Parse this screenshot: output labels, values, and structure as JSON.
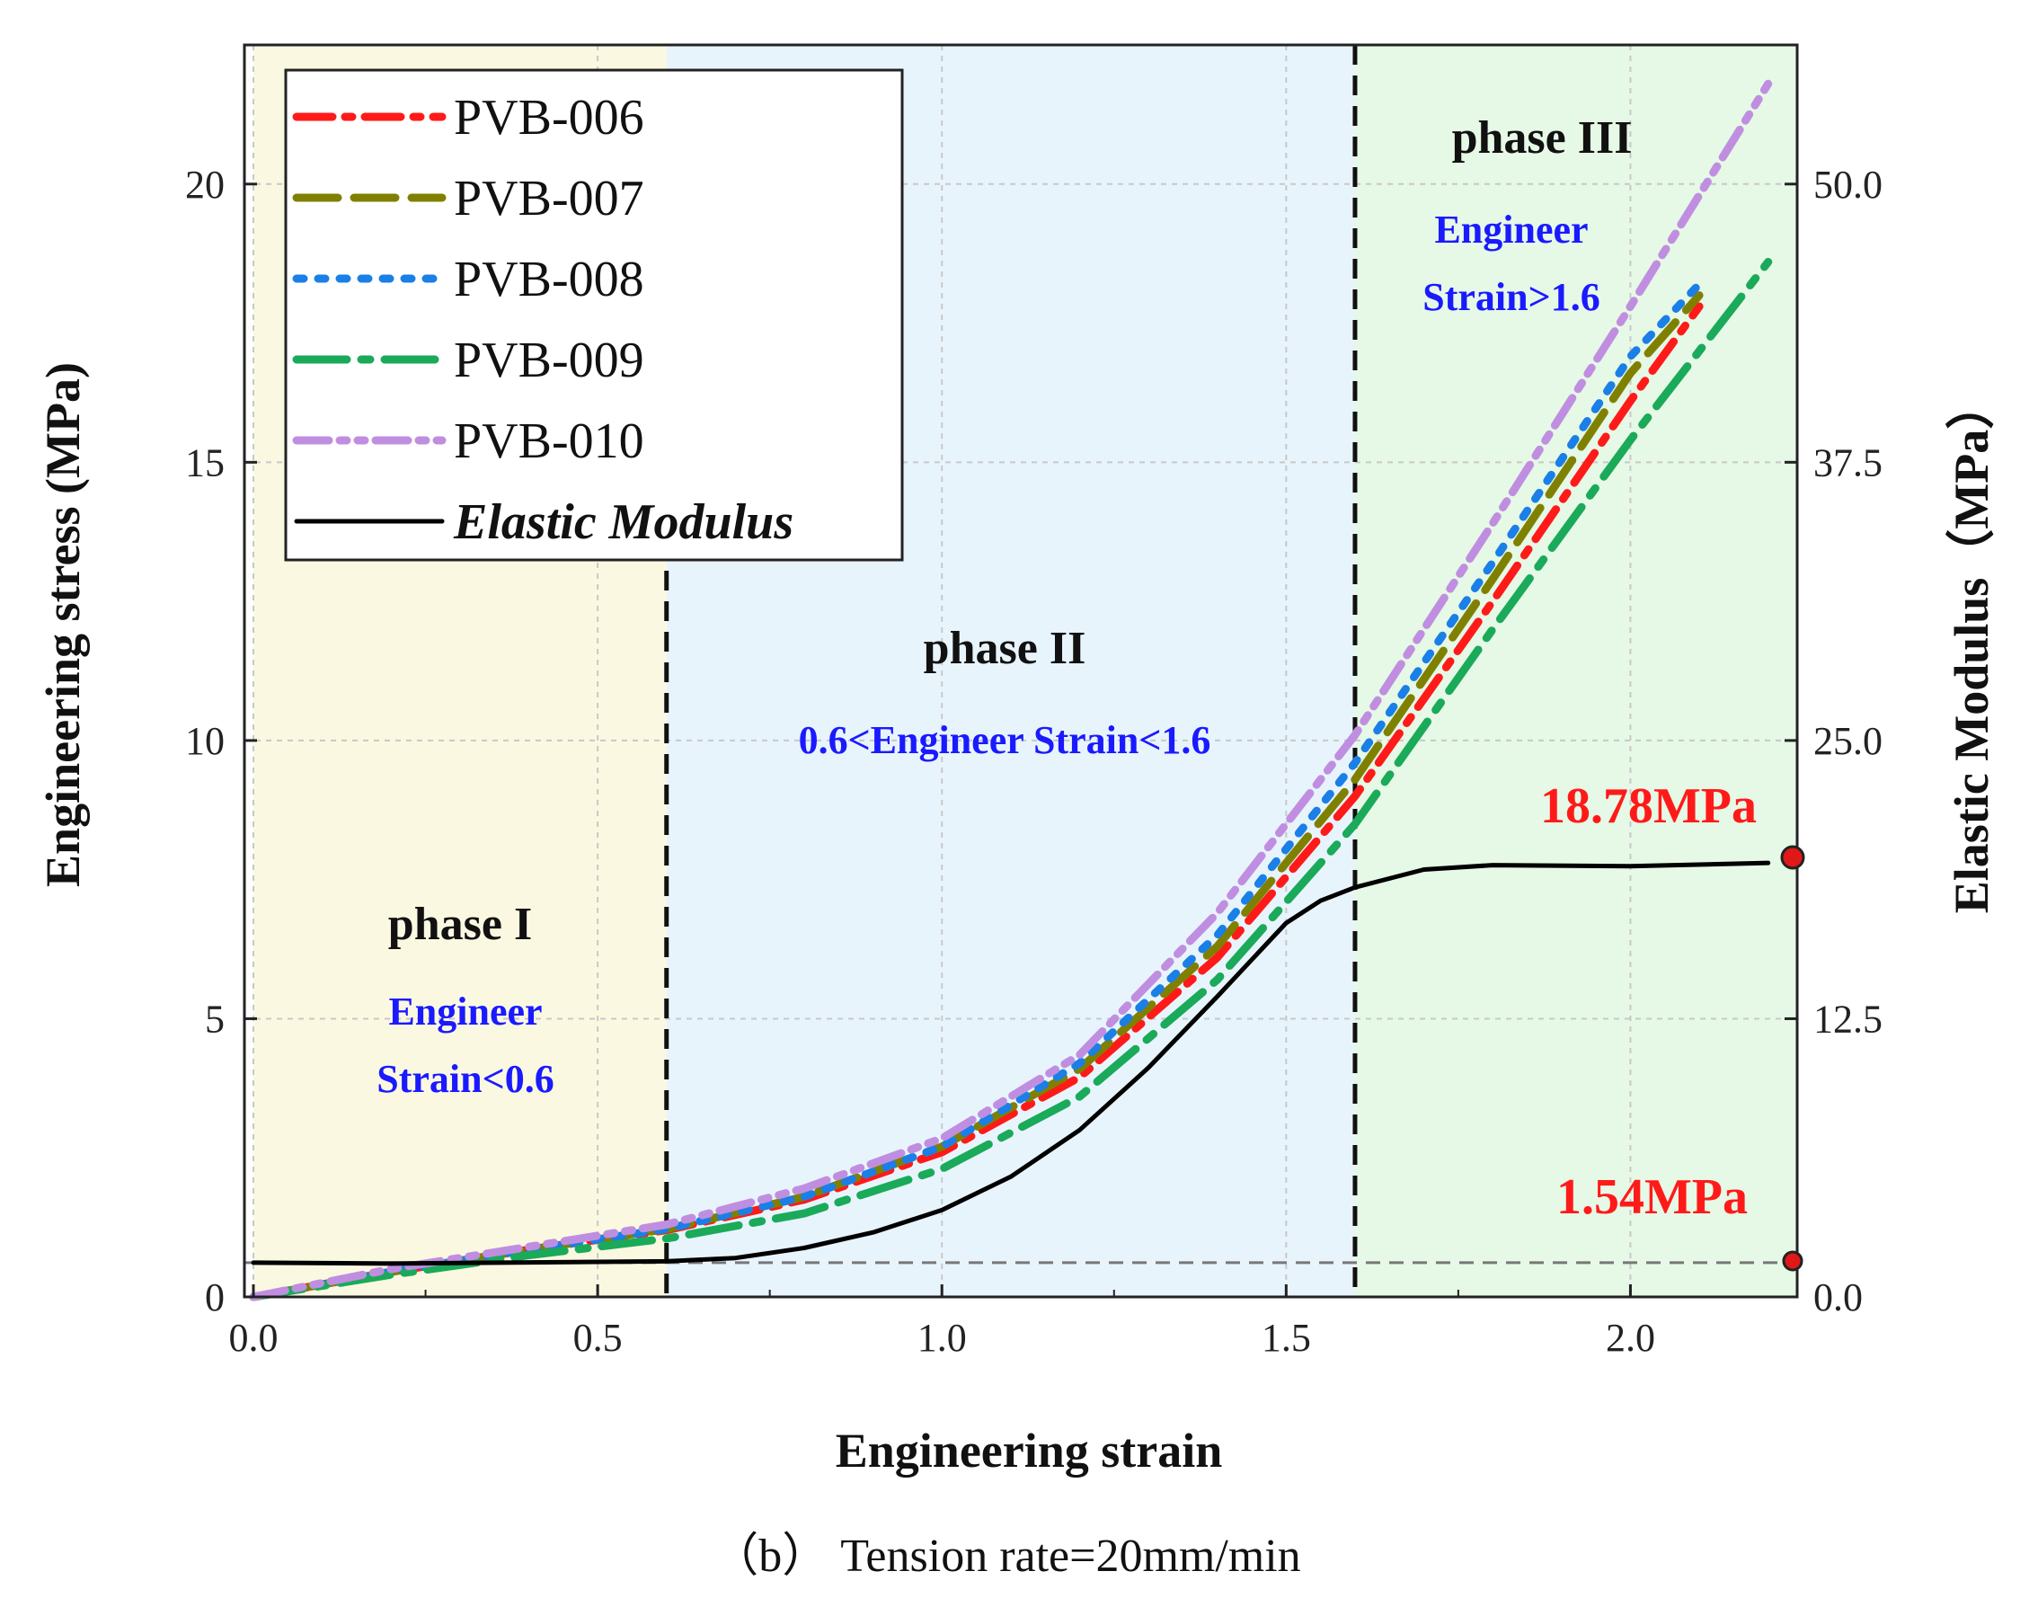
{
  "chart_data": {
    "type": "line",
    "title": "",
    "caption": "（b） Tension rate=20mm/min",
    "xlabel": "Engineering strain",
    "ylabel": "Engineering stress (MPa)",
    "y2label": "Elastic Modulus（MPa）",
    "xlim": [
      0.0,
      2.25
    ],
    "ylim": [
      0,
      22.5
    ],
    "y2lim": [
      0.0,
      56.25
    ],
    "xticks": [
      "0.0",
      "0.5",
      "1.0",
      "1.5",
      "2.0"
    ],
    "yticks": [
      "0",
      "5",
      "10",
      "15",
      "20"
    ],
    "y2ticks": [
      "0.0",
      "12.5",
      "25.0",
      "37.5",
      "50.0"
    ],
    "grid": true,
    "legend_position": "top-left",
    "phases": [
      {
        "name": "phase I",
        "note_line1": "Engineer",
        "note_line2": "Strain<0.6",
        "x_start": 0.0,
        "x_end": 0.6,
        "color": "#fbf8e2"
      },
      {
        "name": "phase II",
        "note_line1": "0.6<Engineer  Strain<1.6",
        "note_line2": "",
        "x_start": 0.6,
        "x_end": 1.6,
        "color": "#e8f4fc"
      },
      {
        "name": "phase III",
        "note_line1": "Engineer",
        "note_line2": "Strain>1.6",
        "x_start": 1.6,
        "x_end": 2.25,
        "color": "#e6f8e6"
      }
    ],
    "phase_boundaries": [
      0.6,
      1.6
    ],
    "annotations": [
      {
        "text": "18.78MPa",
        "x": 2.25,
        "y2": 19.4
      },
      {
        "text": "1.54MPa",
        "x": 2.25,
        "y2": 1.3
      }
    ],
    "series": [
      {
        "name": "PVB-006",
        "color": "#ff1a1a",
        "dash": "dashdot",
        "axis": "left",
        "x": [
          0,
          0.2,
          0.4,
          0.6,
          0.8,
          1.0,
          1.2,
          1.4,
          1.6,
          1.8,
          2.0,
          2.1
        ],
        "y": [
          0,
          0.45,
          0.85,
          1.2,
          1.75,
          2.6,
          3.95,
          6.1,
          9.0,
          12.5,
          16.1,
          17.8
        ]
      },
      {
        "name": "PVB-007",
        "color": "#808000",
        "dash": "dash",
        "axis": "left",
        "x": [
          0,
          0.2,
          0.4,
          0.6,
          0.8,
          1.0,
          1.2,
          1.4,
          1.6,
          1.8,
          2.0,
          2.1
        ],
        "y": [
          0,
          0.45,
          0.85,
          1.22,
          1.8,
          2.7,
          4.1,
          6.3,
          9.3,
          12.9,
          16.6,
          18.0
        ]
      },
      {
        "name": "PVB-008",
        "color": "#1a7fe6",
        "dash": "dot",
        "axis": "left",
        "x": [
          0,
          0.2,
          0.4,
          0.6,
          0.8,
          1.0,
          1.2,
          1.4,
          1.6,
          1.8,
          2.0,
          2.1
        ],
        "y": [
          0,
          0.45,
          0.85,
          1.22,
          1.8,
          2.7,
          4.2,
          6.5,
          9.6,
          13.2,
          16.9,
          18.2
        ]
      },
      {
        "name": "PVB-009",
        "color": "#1aaa5a",
        "dash": "longdashdot",
        "axis": "left",
        "x": [
          0,
          0.2,
          0.4,
          0.6,
          0.8,
          1.0,
          1.2,
          1.4,
          1.6,
          1.8,
          2.0,
          2.2
        ],
        "y": [
          0,
          0.4,
          0.75,
          1.05,
          1.5,
          2.3,
          3.6,
          5.7,
          8.5,
          12.0,
          15.4,
          18.6
        ]
      },
      {
        "name": "PVB-010",
        "color": "#c08ee0",
        "dash": "dashdotdot",
        "axis": "left",
        "x": [
          0,
          0.2,
          0.4,
          0.6,
          0.8,
          1.0,
          1.2,
          1.4,
          1.6,
          1.8,
          2.0,
          2.2
        ],
        "y": [
          0,
          0.5,
          0.9,
          1.3,
          1.95,
          2.85,
          4.35,
          6.9,
          10.1,
          13.9,
          17.8,
          21.8
        ]
      },
      {
        "name": "Elastic Modulus",
        "color": "#000000",
        "dash": "solid",
        "axis": "right",
        "x": [
          0,
          0.2,
          0.4,
          0.6,
          0.7,
          0.8,
          0.9,
          1.0,
          1.1,
          1.2,
          1.3,
          1.4,
          1.5,
          1.55,
          1.6,
          1.7,
          1.8,
          2.0,
          2.2
        ],
        "y": [
          1.54,
          1.5,
          1.55,
          1.6,
          1.75,
          2.2,
          2.9,
          3.9,
          5.4,
          7.5,
          10.3,
          13.5,
          16.8,
          17.8,
          18.4,
          19.2,
          19.4,
          19.35,
          19.5
        ]
      }
    ]
  }
}
